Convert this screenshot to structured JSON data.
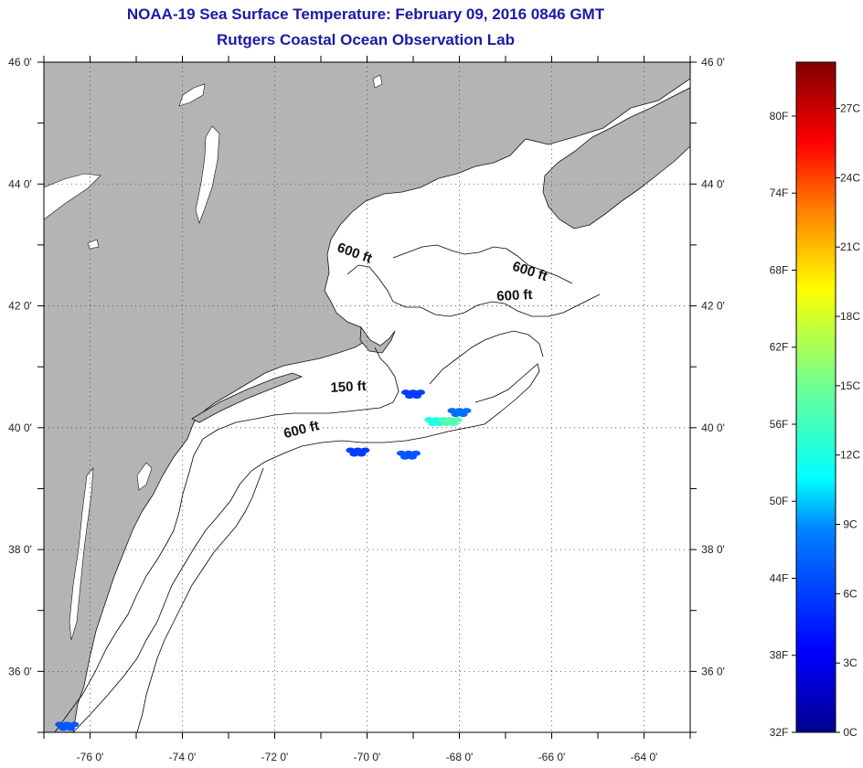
{
  "header": {
    "title": "NOAA-19 Sea Surface Temperature:  February 09, 2016 0846 GMT",
    "subtitle": "Rutgers Coastal Ocean Observation Lab"
  },
  "map": {
    "lon_range": [
      -77,
      -63
    ],
    "lat_range": [
      35,
      46
    ],
    "lon_ticks": [
      {
        "value": -76,
        "label": "-76 0'"
      },
      {
        "value": -74,
        "label": "-74 0'"
      },
      {
        "value": -72,
        "label": "-72 0'"
      },
      {
        "value": -70,
        "label": "-70 0'"
      },
      {
        "value": -68,
        "label": "-68 0'"
      },
      {
        "value": -66,
        "label": "-66 0'"
      },
      {
        "value": -64,
        "label": "-64 0'"
      }
    ],
    "lat_ticks": [
      {
        "value": 46,
        "label": "46 0'"
      },
      {
        "value": 44,
        "label": "44 0'"
      },
      {
        "value": 42,
        "label": "42 0'"
      },
      {
        "value": 40,
        "label": "40 0'"
      },
      {
        "value": 38,
        "label": "38 0'"
      },
      {
        "value": 36,
        "label": "36 0'"
      }
    ],
    "grid": "dotted",
    "land_color": "#b4b4b4",
    "ocean_color": "#ffffff",
    "isobath_labels": [
      {
        "text": "600 ft",
        "lon": -70.3,
        "lat": 42.8,
        "rotate": 20
      },
      {
        "text": "600 ft",
        "lon": -66.5,
        "lat": 42.5,
        "rotate": 18
      },
      {
        "text": "600 ft",
        "lon": -66.8,
        "lat": 42.1,
        "rotate": -3
      },
      {
        "text": "150 ft",
        "lon": -70.4,
        "lat": 40.6,
        "rotate": -3
      },
      {
        "text": "600 ft",
        "lon": -71.4,
        "lat": 39.9,
        "rotate": -14
      }
    ],
    "sst_patches": [
      {
        "lon": -68.5,
        "lat": 40.1,
        "temp_c": 12
      },
      {
        "lon": -68.2,
        "lat": 40.1,
        "temp_c": 14
      },
      {
        "lon": -69.0,
        "lat": 40.55,
        "temp_c": 6
      },
      {
        "lon": -68.0,
        "lat": 40.25,
        "temp_c": 8
      },
      {
        "lon": -70.2,
        "lat": 39.6,
        "temp_c": 6
      },
      {
        "lon": -69.1,
        "lat": 39.55,
        "temp_c": 7
      },
      {
        "lon": -76.5,
        "lat": 35.1,
        "temp_c": 7
      }
    ]
  },
  "colorbar": {
    "range_c": [
      0,
      29
    ],
    "celsius_ticks": [
      {
        "value": 0,
        "label": "0C"
      },
      {
        "value": 3,
        "label": "3C"
      },
      {
        "value": 6,
        "label": "6C"
      },
      {
        "value": 9,
        "label": "9C"
      },
      {
        "value": 12,
        "label": "12C"
      },
      {
        "value": 15,
        "label": "15C"
      },
      {
        "value": 18,
        "label": "18C"
      },
      {
        "value": 21,
        "label": "21C"
      },
      {
        "value": 24,
        "label": "24C"
      },
      {
        "value": 27,
        "label": "27C"
      }
    ],
    "fahrenheit_ticks": [
      {
        "value": 32,
        "label": "32F"
      },
      {
        "value": 38,
        "label": "38F"
      },
      {
        "value": 44,
        "label": "44F"
      },
      {
        "value": 50,
        "label": "50F"
      },
      {
        "value": 56,
        "label": "56F"
      },
      {
        "value": 62,
        "label": "62F"
      },
      {
        "value": 68,
        "label": "68F"
      },
      {
        "value": 74,
        "label": "74F"
      },
      {
        "value": 80,
        "label": "80F"
      }
    ]
  }
}
